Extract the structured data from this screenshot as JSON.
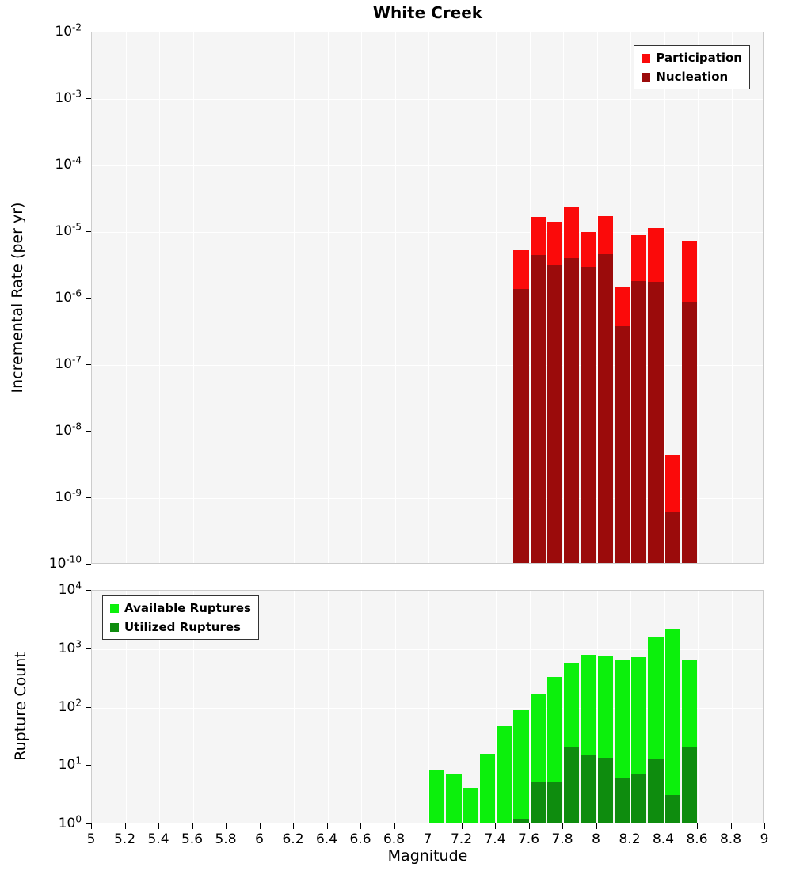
{
  "title": "White Creek",
  "xlabel": "Magnitude",
  "x_axis": {
    "min": 5,
    "max": 9,
    "tick_values": [
      5,
      5.2,
      5.4,
      5.6,
      5.8,
      6,
      6.2,
      6.4,
      6.6,
      6.8,
      7,
      7.2,
      7.4,
      7.6,
      7.8,
      8,
      8.2,
      8.4,
      8.6,
      8.8,
      9
    ],
    "tick_labels": [
      "5",
      "5.2",
      "5.4",
      "5.6",
      "5.8",
      "6",
      "6.2",
      "6.4",
      "6.6",
      "6.8",
      "7",
      "7.2",
      "7.4",
      "7.6",
      "7.8",
      "8",
      "8.2",
      "8.4",
      "8.6",
      "8.8",
      "9"
    ]
  },
  "colors": {
    "participation": "#fb0a0a",
    "nucleation": "#9b0b0b",
    "available": "#0cf00c",
    "utilized": "#0e8c0e",
    "plot_background": "#f5f5f5",
    "grid": "#ffffff"
  },
  "chart_data": [
    {
      "type": "bar",
      "title": "White Creek",
      "ylabel": "Incremental Rate (per yr)",
      "xlabel": "Magnitude",
      "yscale": "log",
      "ylim": [
        1e-10,
        0.01
      ],
      "xlim": [
        5,
        9
      ],
      "grid": true,
      "legend_position": "top-right",
      "y_tick_exponents": [
        -2,
        -3,
        -4,
        -5,
        -6,
        -7,
        -8,
        -9,
        -10
      ],
      "bin_width": 0.1,
      "categories": [
        7.55,
        7.65,
        7.75,
        7.85,
        7.95,
        8.05,
        8.15,
        8.25,
        8.35,
        8.45,
        8.55
      ],
      "series": [
        {
          "name": "Participation",
          "color": "#fb0a0a",
          "values": [
            5e-06,
            1.6e-05,
            1.35e-05,
            2.2e-05,
            9.5e-06,
            1.65e-05,
            1.4e-06,
            8.5e-06,
            1.1e-05,
            4.2e-09,
            7e-06
          ]
        },
        {
          "name": "Nucleation",
          "color": "#9b0b0b",
          "values": [
            1.3e-06,
            4.3e-06,
            3e-06,
            3.8e-06,
            2.8e-06,
            4.4e-06,
            3.6e-07,
            1.75e-06,
            1.7e-06,
            6e-10,
            8.5e-07
          ]
        }
      ]
    },
    {
      "type": "bar",
      "title": "",
      "ylabel": "Rupture Count",
      "xlabel": "Magnitude",
      "yscale": "log",
      "ylim": [
        1,
        10000.0
      ],
      "xlim": [
        5,
        9
      ],
      "grid": true,
      "legend_position": "top-left",
      "y_tick_exponents": [
        4,
        3,
        2,
        1,
        0
      ],
      "bin_width": 0.1,
      "categories": [
        7.05,
        7.15,
        7.25,
        7.35,
        7.45,
        7.55,
        7.65,
        7.75,
        7.85,
        7.95,
        8.05,
        8.15,
        8.25,
        8.35,
        8.45,
        8.55
      ],
      "series": [
        {
          "name": "Available Ruptures",
          "color": "#0cf00c",
          "values": [
            8,
            7,
            4,
            15,
            45,
            85,
            160,
            310,
            550,
            750,
            700,
            600,
            680,
            1500,
            2100,
            620
          ]
        },
        {
          "name": "Utilized Ruptures",
          "color": "#0e8c0e",
          "values": [
            0,
            0,
            0,
            0,
            0,
            1,
            5,
            5,
            20,
            14,
            13,
            6,
            7,
            12,
            3,
            20
          ]
        }
      ]
    }
  ]
}
